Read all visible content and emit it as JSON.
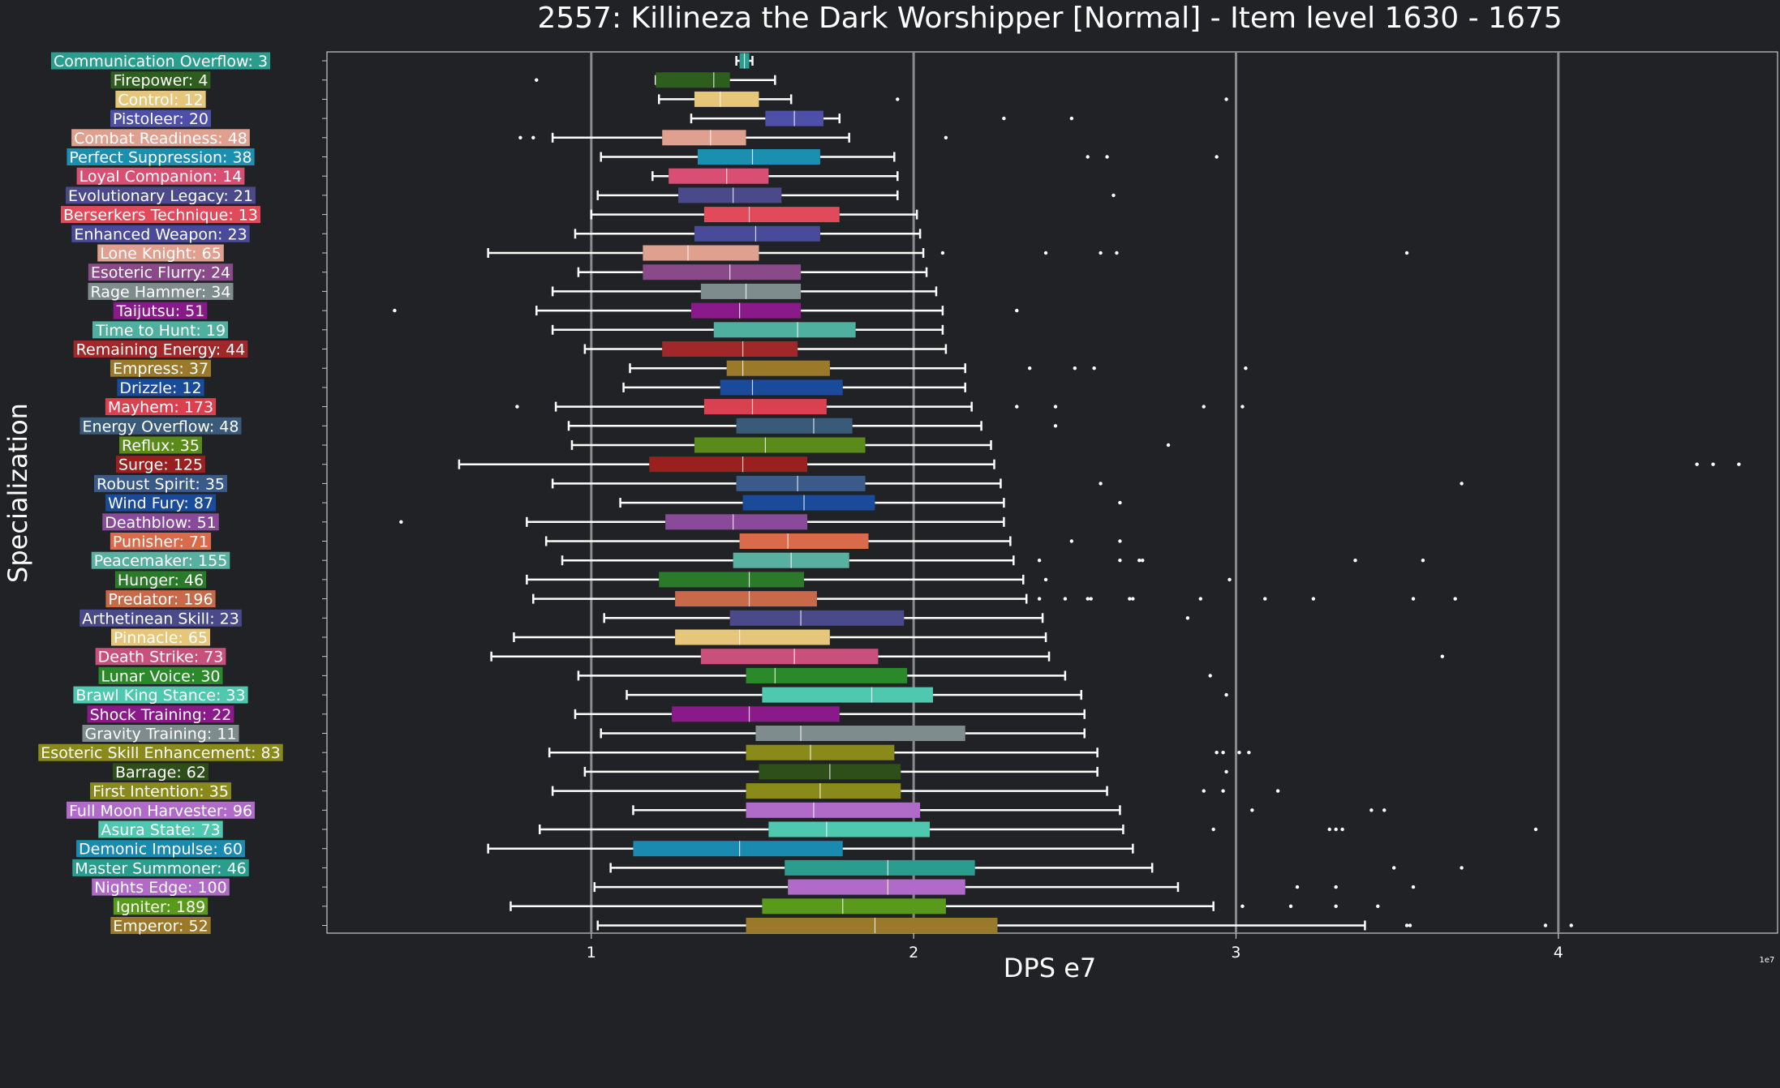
{
  "chart_data": {
    "type": "box",
    "title": "2557: Killineza the Dark Worshipper [Normal] - Item level 1630 - 1675",
    "xlabel": "DPS e7",
    "ylabel": "Specialization",
    "x_multiplier_label": "1e7",
    "xlim": [
      0.18,
      4.68
    ],
    "x_ticks": [
      1,
      2,
      3,
      4
    ],
    "x_tick_labels": [
      "1",
      "2",
      "3",
      "4"
    ],
    "grid_x": true,
    "background": "#202226",
    "series": [
      {
        "label": "Communication Overflow: 3",
        "color": "#2a9d8f",
        "whisker_low": 1.45,
        "q1": 1.46,
        "median": 1.475,
        "q3": 1.49,
        "whisker_high": 1.5,
        "outliers": []
      },
      {
        "label": "Firepower: 4",
        "color": "#2e5e1e",
        "whisker_low": 1.2,
        "q1": 1.2,
        "median": 1.38,
        "q3": 1.43,
        "whisker_high": 1.57,
        "outliers": [
          0.83
        ]
      },
      {
        "label": "Control: 12",
        "color": "#e6c67a",
        "whisker_low": 1.21,
        "q1": 1.32,
        "median": 1.4,
        "q3": 1.52,
        "whisker_high": 1.62,
        "outliers": [
          1.95,
          2.97
        ]
      },
      {
        "label": "Pistoleer: 20",
        "color": "#4e4fa8",
        "whisker_low": 1.31,
        "q1": 1.54,
        "median": 1.63,
        "q3": 1.72,
        "whisker_high": 1.77,
        "outliers": [
          2.28,
          2.49
        ]
      },
      {
        "label": "Combat Readiness: 48",
        "color": "#e0a090",
        "whisker_low": 0.88,
        "q1": 1.22,
        "median": 1.37,
        "q3": 1.48,
        "whisker_high": 1.8,
        "outliers": [
          0.78,
          0.82,
          2.1
        ]
      },
      {
        "label": "Perfect Suppression: 38",
        "color": "#1a8fb0",
        "whisker_low": 1.03,
        "q1": 1.33,
        "median": 1.5,
        "q3": 1.71,
        "whisker_high": 1.94,
        "outliers": [
          2.54,
          2.6,
          2.94
        ]
      },
      {
        "label": "Loyal Companion: 14",
        "color": "#d94f73",
        "whisker_low": 1.19,
        "q1": 1.24,
        "median": 1.42,
        "q3": 1.55,
        "whisker_high": 1.95,
        "outliers": []
      },
      {
        "label": "Evolutionary Legacy: 21",
        "color": "#4a4a8a",
        "whisker_low": 1.02,
        "q1": 1.27,
        "median": 1.44,
        "q3": 1.59,
        "whisker_high": 1.95,
        "outliers": [
          2.62
        ]
      },
      {
        "label": "Berserkers Technique: 13",
        "color": "#e04a5a",
        "whisker_low": 1.0,
        "q1": 1.35,
        "median": 1.49,
        "q3": 1.77,
        "whisker_high": 2.01,
        "outliers": []
      },
      {
        "label": "Enhanced Weapon: 23",
        "color": "#4a4a9a",
        "whisker_low": 0.95,
        "q1": 1.32,
        "median": 1.51,
        "q3": 1.71,
        "whisker_high": 2.02,
        "outliers": []
      },
      {
        "label": "Lone Knight: 65",
        "color": "#e0a090",
        "whisker_low": 0.68,
        "q1": 1.16,
        "median": 1.3,
        "q3": 1.52,
        "whisker_high": 2.03,
        "outliers": [
          2.09,
          2.41,
          2.58,
          2.63,
          3.53
        ]
      },
      {
        "label": "Esoteric Flurry: 24",
        "color": "#8a4a8a",
        "whisker_low": 0.96,
        "q1": 1.16,
        "median": 1.43,
        "q3": 1.65,
        "whisker_high": 2.04,
        "outliers": []
      },
      {
        "label": "Rage Hammer: 34",
        "color": "#7f8c8d",
        "whisker_low": 0.88,
        "q1": 1.34,
        "median": 1.48,
        "q3": 1.65,
        "whisker_high": 2.07,
        "outliers": []
      },
      {
        "label": "Taijutsu: 51",
        "color": "#8a1a8a",
        "whisker_low": 0.83,
        "q1": 1.31,
        "median": 1.46,
        "q3": 1.65,
        "whisker_high": 2.09,
        "outliers": [
          0.39,
          2.32
        ]
      },
      {
        "label": "Time to Hunt: 19",
        "color": "#4fb0a0",
        "whisker_low": 0.88,
        "q1": 1.38,
        "median": 1.64,
        "q3": 1.82,
        "whisker_high": 2.09,
        "outliers": []
      },
      {
        "label": "Remaining Energy: 44",
        "color": "#a02828",
        "whisker_low": 0.98,
        "q1": 1.22,
        "median": 1.47,
        "q3": 1.64,
        "whisker_high": 2.1,
        "outliers": []
      },
      {
        "label": "Empress: 37",
        "color": "#9a7a2a",
        "whisker_low": 1.12,
        "q1": 1.42,
        "median": 1.47,
        "q3": 1.74,
        "whisker_high": 2.16,
        "outliers": [
          2.36,
          2.5,
          2.56,
          3.03
        ]
      },
      {
        "label": "Drizzle: 12",
        "color": "#1a4a9a",
        "whisker_low": 1.1,
        "q1": 1.4,
        "median": 1.5,
        "q3": 1.78,
        "whisker_high": 2.16,
        "outliers": []
      },
      {
        "label": "Mayhem: 173",
        "color": "#d94050",
        "whisker_low": 0.89,
        "q1": 1.35,
        "median": 1.5,
        "q3": 1.73,
        "whisker_high": 2.18,
        "outliers": [
          0.77,
          2.32,
          2.44,
          2.9,
          3.02
        ]
      },
      {
        "label": "Energy Overflow: 48",
        "color": "#3a5a7a",
        "whisker_low": 0.93,
        "q1": 1.45,
        "median": 1.69,
        "q3": 1.81,
        "whisker_high": 2.21,
        "outliers": [
          2.44
        ]
      },
      {
        "label": "Reflux: 35",
        "color": "#5a8a1a",
        "whisker_low": 0.94,
        "q1": 1.32,
        "median": 1.54,
        "q3": 1.85,
        "whisker_high": 2.24,
        "outliers": [
          2.79
        ]
      },
      {
        "label": "Surge: 125",
        "color": "#9a2020",
        "whisker_low": 0.59,
        "q1": 1.18,
        "median": 1.47,
        "q3": 1.67,
        "whisker_high": 2.25,
        "outliers": [
          4.43,
          4.48,
          4.56
        ]
      },
      {
        "label": "Robust Spirit: 35",
        "color": "#3a5a8a",
        "whisker_low": 0.88,
        "q1": 1.45,
        "median": 1.64,
        "q3": 1.85,
        "whisker_high": 2.27,
        "outliers": [
          2.58,
          3.7
        ]
      },
      {
        "label": "Wind Fury: 87",
        "color": "#1a4a9a",
        "whisker_low": 1.09,
        "q1": 1.47,
        "median": 1.66,
        "q3": 1.88,
        "whisker_high": 2.28,
        "outliers": [
          2.64
        ]
      },
      {
        "label": "Deathblow: 51",
        "color": "#8a4a9a",
        "whisker_low": 0.8,
        "q1": 1.23,
        "median": 1.44,
        "q3": 1.67,
        "whisker_high": 2.28,
        "outliers": [
          0.41
        ]
      },
      {
        "label": "Punisher: 71",
        "color": "#d96a4a",
        "whisker_low": 0.86,
        "q1": 1.46,
        "median": 1.61,
        "q3": 1.86,
        "whisker_high": 2.3,
        "outliers": [
          2.49,
          2.64
        ]
      },
      {
        "label": "Peacemaker: 155",
        "color": "#5ab0a0",
        "whisker_low": 0.91,
        "q1": 1.44,
        "median": 1.62,
        "q3": 1.8,
        "whisker_high": 2.31,
        "outliers": [
          2.39,
          2.64,
          2.7,
          2.71,
          3.37,
          3.58
        ]
      },
      {
        "label": "Hunger: 46",
        "color": "#2a7a2a",
        "whisker_low": 0.8,
        "q1": 1.21,
        "median": 1.49,
        "q3": 1.66,
        "whisker_high": 2.34,
        "outliers": [
          2.41,
          2.98
        ]
      },
      {
        "label": "Predator: 196",
        "color": "#c86a4a",
        "whisker_low": 0.82,
        "q1": 1.26,
        "median": 1.49,
        "q3": 1.7,
        "whisker_high": 2.35,
        "outliers": [
          2.39,
          2.47,
          2.54,
          2.55,
          2.67,
          2.68,
          2.89,
          3.09,
          3.24,
          3.55,
          3.68
        ]
      },
      {
        "label": "Arthetinean Skill: 23",
        "color": "#4a4a8a",
        "whisker_low": 1.04,
        "q1": 1.43,
        "median": 1.65,
        "q3": 1.97,
        "whisker_high": 2.4,
        "outliers": [
          2.85
        ]
      },
      {
        "label": "Pinnacle: 65",
        "color": "#e6c67a",
        "whisker_low": 0.76,
        "q1": 1.26,
        "median": 1.46,
        "q3": 1.74,
        "whisker_high": 2.41,
        "outliers": []
      },
      {
        "label": "Death Strike: 73",
        "color": "#c8507a",
        "whisker_low": 0.69,
        "q1": 1.34,
        "median": 1.63,
        "q3": 1.89,
        "whisker_high": 2.42,
        "outliers": [
          3.64
        ]
      },
      {
        "label": "Lunar Voice: 30",
        "color": "#2a8a2a",
        "whisker_low": 0.96,
        "q1": 1.48,
        "median": 1.57,
        "q3": 1.98,
        "whisker_high": 2.47,
        "outliers": [
          2.92
        ]
      },
      {
        "label": "Brawl King Stance: 33",
        "color": "#4fc8b0",
        "whisker_low": 1.11,
        "q1": 1.53,
        "median": 1.87,
        "q3": 2.06,
        "whisker_high": 2.52,
        "outliers": [
          2.97
        ]
      },
      {
        "label": "Shock Training: 22",
        "color": "#8a1a8a",
        "whisker_low": 0.95,
        "q1": 1.25,
        "median": 1.49,
        "q3": 1.77,
        "whisker_high": 2.53,
        "outliers": []
      },
      {
        "label": "Gravity Training: 11",
        "color": "#7f8c8d",
        "whisker_low": 1.03,
        "q1": 1.51,
        "median": 1.65,
        "q3": 2.16,
        "whisker_high": 2.53,
        "outliers": []
      },
      {
        "label": "Esoteric Skill Enhancement: 83",
        "color": "#8a8a1a",
        "whisker_low": 0.87,
        "q1": 1.48,
        "median": 1.68,
        "q3": 1.94,
        "whisker_high": 2.57,
        "outliers": [
          2.94,
          2.96,
          3.01,
          3.04
        ]
      },
      {
        "label": "Barrage: 62",
        "color": "#2e4e1a",
        "whisker_low": 0.98,
        "q1": 1.52,
        "median": 1.74,
        "q3": 1.96,
        "whisker_high": 2.57,
        "outliers": [
          2.97
        ]
      },
      {
        "label": "First Intention: 35",
        "color": "#8a8a1a",
        "whisker_low": 0.88,
        "q1": 1.48,
        "median": 1.71,
        "q3": 1.96,
        "whisker_high": 2.6,
        "outliers": [
          2.9,
          2.96,
          3.13
        ]
      },
      {
        "label": "Full Moon Harvester: 96",
        "color": "#b06ac8",
        "whisker_low": 1.13,
        "q1": 1.48,
        "median": 1.69,
        "q3": 2.02,
        "whisker_high": 2.64,
        "outliers": [
          3.05,
          3.42,
          3.46
        ]
      },
      {
        "label": "Asura State: 73",
        "color": "#4fc8b0",
        "whisker_low": 0.84,
        "q1": 1.55,
        "median": 1.73,
        "q3": 2.05,
        "whisker_high": 2.65,
        "outliers": [
          2.93,
          3.29,
          3.31,
          3.33,
          3.93
        ]
      },
      {
        "label": "Demonic Impulse: 60",
        "color": "#1a8ab0",
        "whisker_low": 0.68,
        "q1": 1.13,
        "median": 1.46,
        "q3": 1.78,
        "whisker_high": 2.68,
        "outliers": []
      },
      {
        "label": "Master Summoner: 46",
        "color": "#2a9d8f",
        "whisker_low": 1.06,
        "q1": 1.6,
        "median": 1.92,
        "q3": 2.19,
        "whisker_high": 2.74,
        "outliers": [
          3.49,
          3.7
        ]
      },
      {
        "label": "Nights Edge: 100",
        "color": "#b06ac8",
        "whisker_low": 1.01,
        "q1": 1.61,
        "median": 1.92,
        "q3": 2.16,
        "whisker_high": 2.82,
        "outliers": [
          3.19,
          3.31,
          3.55
        ]
      },
      {
        "label": "Igniter: 189",
        "color": "#5a9a1a",
        "whisker_low": 0.75,
        "q1": 1.53,
        "median": 1.78,
        "q3": 2.1,
        "whisker_high": 2.93,
        "outliers": [
          3.02,
          3.17,
          3.31,
          3.44
        ]
      },
      {
        "label": "Emperor: 52",
        "color": "#9a7a2a",
        "whisker_low": 1.02,
        "q1": 1.48,
        "median": 1.88,
        "q3": 2.26,
        "whisker_high": 3.4,
        "outliers": [
          3.53,
          3.54,
          3.96,
          4.04
        ]
      }
    ]
  }
}
